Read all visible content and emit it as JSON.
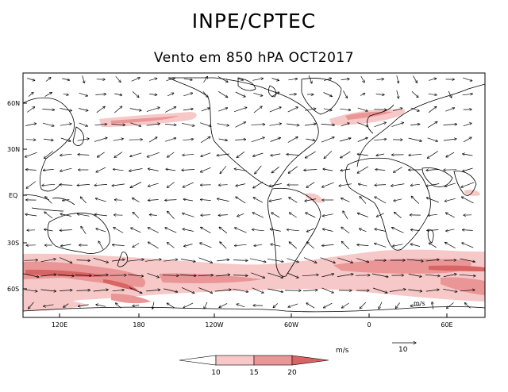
{
  "header": {
    "agency": "INPE/CPTEC",
    "subtitle": "Vento em 850 hPA OCT2017"
  },
  "map": {
    "lat_labels": [
      "60N",
      "30N",
      "EQ",
      "30S",
      "60S"
    ],
    "lon_labels": [
      "120E",
      "180",
      "120W",
      "60W",
      "0",
      "60E"
    ],
    "overlay_label": "m/s"
  },
  "legend": {
    "unit": "m/s",
    "ref_vector_value": "10",
    "levels": [
      "10",
      "15",
      "20"
    ],
    "colors": [
      "#ffffff",
      "#f6c8c8",
      "#ea9696",
      "#d86464"
    ]
  }
}
